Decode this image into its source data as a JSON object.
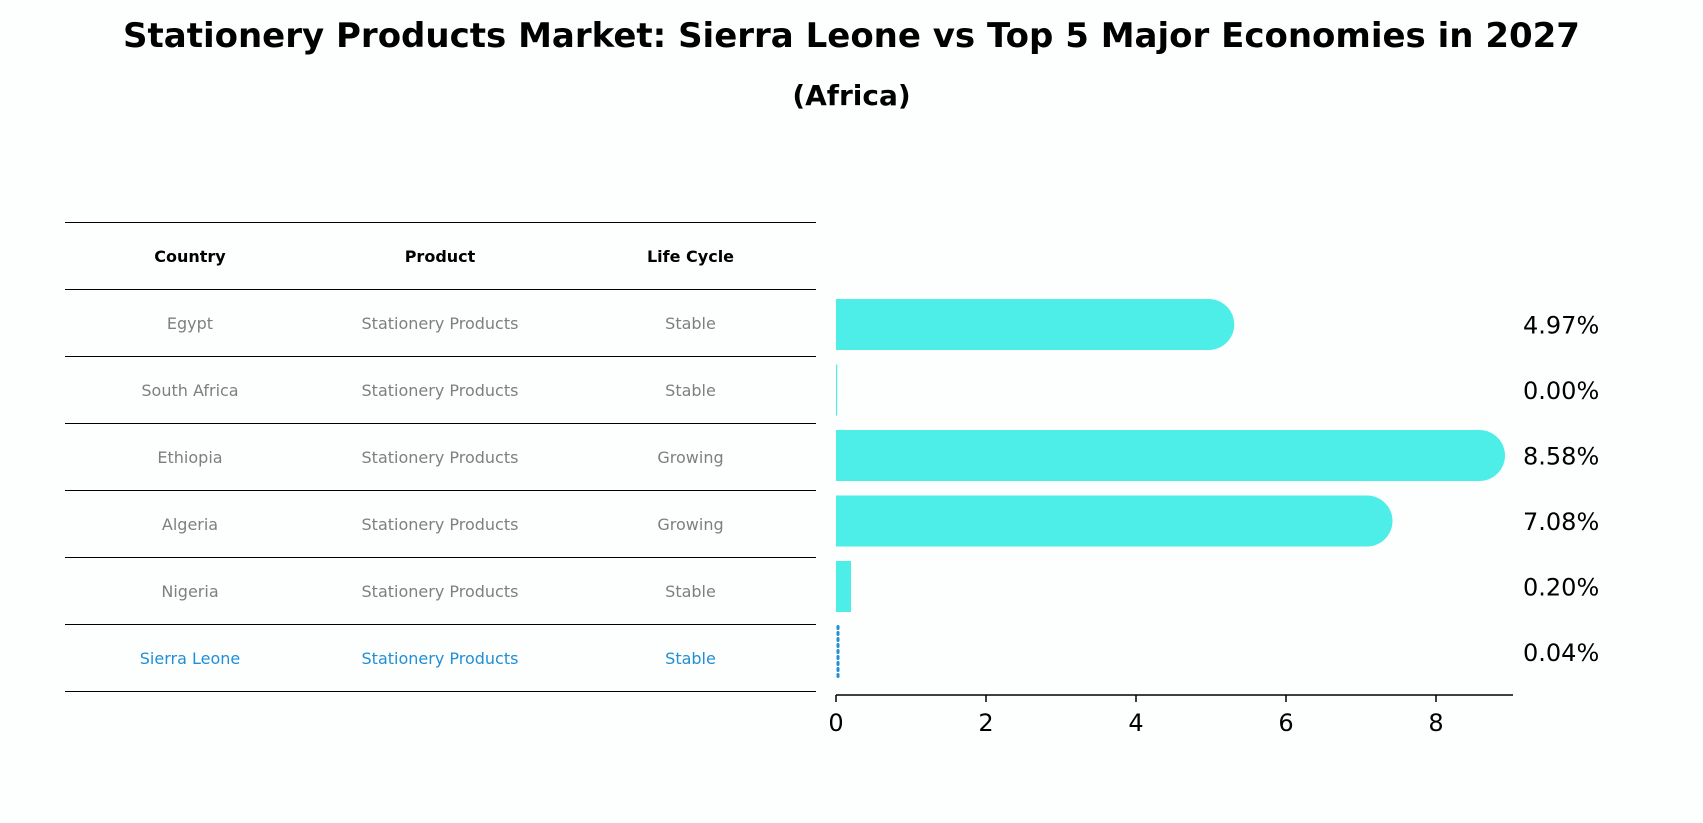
{
  "chart_data": {
    "type": "bar",
    "orientation": "horizontal",
    "title": "Stationery Products Market: Sierra Leone vs Top 5 Major Economies in 2027",
    "subtitle": "(Africa)",
    "table": {
      "headers": [
        "Country",
        "Product",
        "Life Cycle"
      ],
      "rows": [
        {
          "country": "Egypt",
          "product": "Stationery Products",
          "life_cycle": "Stable"
        },
        {
          "country": "South Africa",
          "product": "Stationery Products",
          "life_cycle": "Stable"
        },
        {
          "country": "Ethiopia",
          "product": "Stationery Products",
          "life_cycle": "Growing"
        },
        {
          "country": "Algeria",
          "product": "Stationery Products",
          "life_cycle": "Growing"
        },
        {
          "country": "Nigeria",
          "product": "Stationery Products",
          "life_cycle": "Stable"
        },
        {
          "country": "Sierra Leone",
          "product": "Stationery Products",
          "life_cycle": "Stable"
        }
      ],
      "highlight_row": 5
    },
    "categories": [
      "Egypt",
      "South Africa",
      "Ethiopia",
      "Algeria",
      "Nigeria",
      "Sierra Leone"
    ],
    "values": [
      4.97,
      0.0,
      8.58,
      7.08,
      0.2,
      0.04
    ],
    "value_labels": [
      "4.97%",
      "0.00%",
      "8.58%",
      "7.08%",
      "0.20%",
      "0.04%"
    ],
    "xlim": [
      0,
      9
    ],
    "xticks": [
      0,
      2,
      4,
      6,
      8
    ],
    "xlabel": "",
    "ylabel": "",
    "colors": {
      "bar": "#4dede8",
      "highlight": "#1f8fd6",
      "text_muted": "#7f7f7f"
    }
  }
}
